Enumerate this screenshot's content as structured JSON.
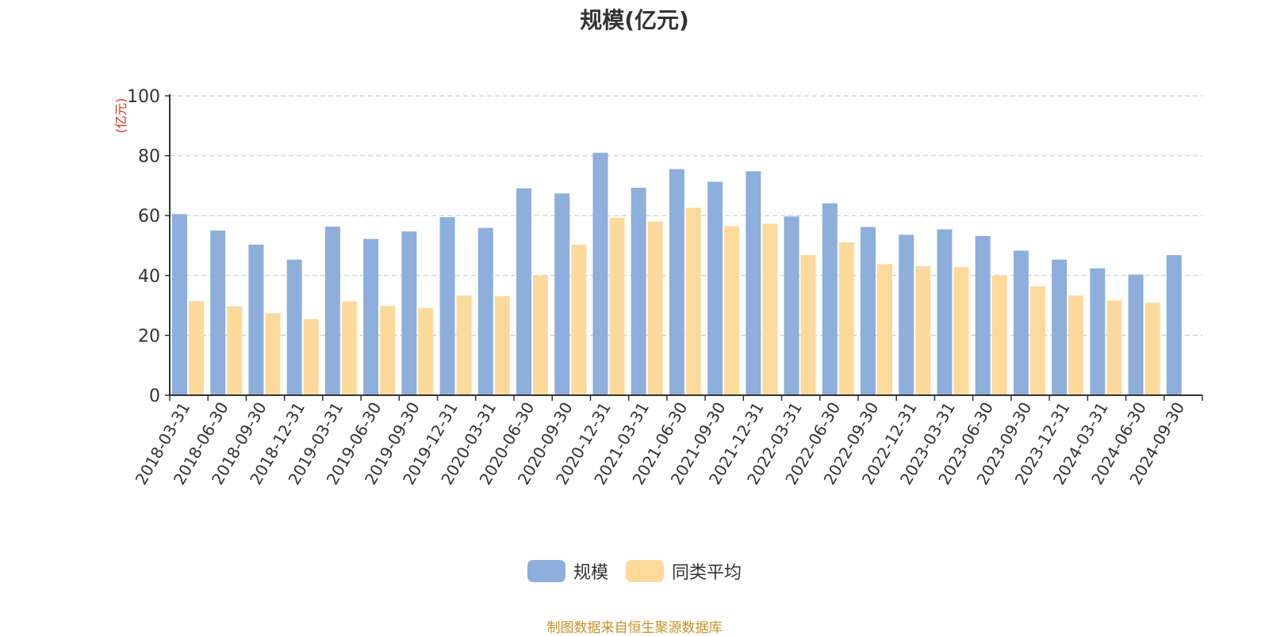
{
  "chart_data": {
    "type": "bar",
    "title": "规模(亿元)",
    "ylabel": "(亿元)",
    "xlabel": "",
    "ylim": [
      0,
      100
    ],
    "yticks": [
      0,
      20,
      40,
      60,
      80,
      100
    ],
    "grid": true,
    "legend_position": "bottom",
    "categories": [
      "2018-03-31",
      "2018-06-30",
      "2018-09-30",
      "2018-12-31",
      "2019-03-31",
      "2019-06-30",
      "2019-09-30",
      "2019-12-31",
      "2020-03-31",
      "2020-06-30",
      "2020-09-30",
      "2020-12-31",
      "2021-03-31",
      "2021-06-30",
      "2021-09-30",
      "2021-12-31",
      "2022-03-31",
      "2022-06-30",
      "2022-09-30",
      "2022-12-31",
      "2023-03-31",
      "2023-06-30",
      "2023-09-30",
      "2023-12-31",
      "2024-03-31",
      "2024-06-30",
      "2024-09-30"
    ],
    "series": [
      {
        "name": "规模",
        "color": "#8eaedb",
        "values": [
          60.5,
          55.0,
          50.3,
          45.3,
          56.3,
          52.2,
          54.7,
          59.5,
          55.9,
          69.1,
          67.4,
          81.0,
          69.3,
          75.5,
          71.3,
          74.8,
          59.7,
          64.1,
          56.2,
          53.6,
          55.4,
          53.2,
          48.3,
          45.3,
          42.4,
          40.3,
          46.8
        ]
      },
      {
        "name": "同类平均",
        "color": "#fdd99b",
        "values": [
          31.4,
          29.7,
          27.4,
          25.4,
          31.3,
          29.8,
          29.1,
          33.3,
          33.1,
          40.0,
          50.3,
          59.3,
          58.0,
          62.6,
          56.5,
          57.3,
          46.8,
          51.1,
          43.8,
          43.1,
          42.8,
          39.9,
          36.4,
          33.3,
          31.6,
          30.9,
          null
        ]
      }
    ]
  },
  "legend": [
    {
      "label": "规模",
      "color": "#8eaedb"
    },
    {
      "label": "同类平均",
      "color": "#fdd99b"
    }
  ],
  "source_note": "制图数据来自恒生聚源数据库",
  "colors": {
    "axis": "#333333",
    "grid": "#cccccc",
    "ylabel": "#e0301e",
    "text": "#333333"
  }
}
